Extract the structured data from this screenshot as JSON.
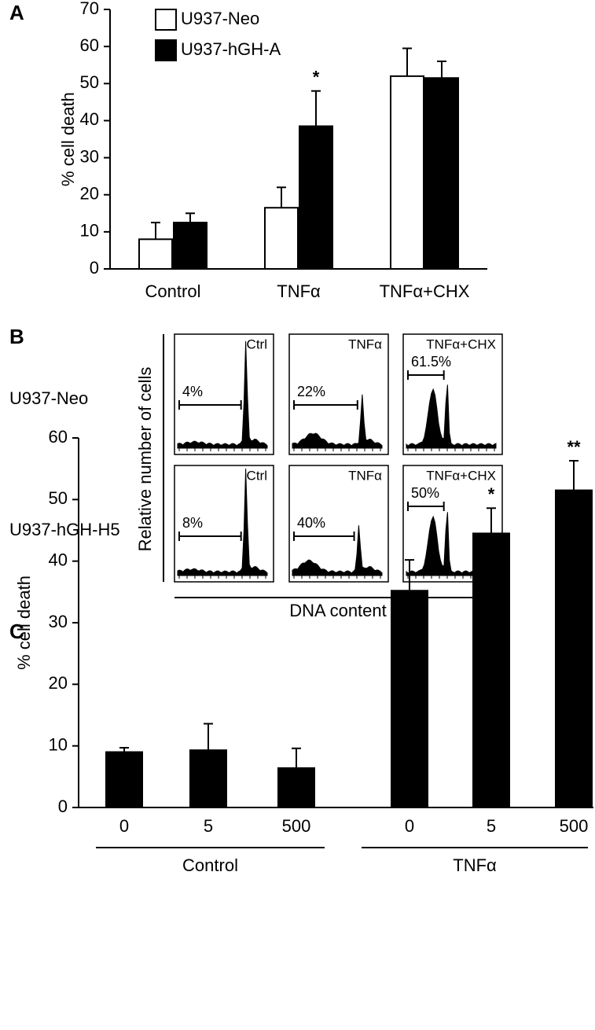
{
  "chart_data": [
    {
      "type": "bar",
      "panel_label": "A",
      "y_label": "% cell death",
      "categories": [
        "Control",
        "TNFα",
        "TNFα+CHX"
      ],
      "series": [
        {
          "name": "U937-Neo",
          "color": "#ffffff",
          "values": [
            8,
            16.5,
            52
          ],
          "errors": [
            4.5,
            5.5,
            7.5
          ]
        },
        {
          "name": "U937-hGH-A",
          "color": "#000000",
          "values": [
            12.5,
            38.5,
            51.5
          ],
          "errors": [
            2.5,
            9.5,
            4.5
          ],
          "markers": [
            null,
            "*",
            null
          ]
        }
      ],
      "ylim": [
        0,
        70
      ],
      "yticks": [
        0,
        10,
        20,
        30,
        40,
        50,
        60,
        70
      ],
      "legend": "top-left"
    },
    {
      "type": "flow-panels",
      "panel_label": "B",
      "y_label": "Relative number of cells",
      "x_label": "DNA content",
      "rows": [
        "U937-Neo",
        "U937-hGH-H5"
      ],
      "columns": [
        "Ctrl",
        "TNFα",
        "TNFα+CHX"
      ],
      "values": [
        4,
        22,
        61.5,
        8,
        40,
        50
      ],
      "value_labels": [
        "4%",
        "22%",
        "61.5%",
        "8%",
        "40%",
        "50%"
      ]
    },
    {
      "type": "bar",
      "panel_label": "C",
      "y_label": "% cell death",
      "categories": [
        "0",
        "5",
        "500",
        "0",
        "5",
        "500"
      ],
      "groups": [
        "Control",
        "TNFα"
      ],
      "series": [
        {
          "color": "#000000",
          "values": [
            9,
            9.3,
            6.4,
            35.2,
            44.5,
            51.5
          ],
          "errors": [
            0.7,
            4.3,
            3.2,
            5,
            4.1,
            4.8
          ],
          "markers": [
            null,
            null,
            null,
            null,
            "*",
            "**"
          ]
        }
      ],
      "ylim": [
        0,
        60
      ],
      "yticks": [
        0,
        10,
        20,
        30,
        40,
        50,
        60
      ]
    }
  ]
}
